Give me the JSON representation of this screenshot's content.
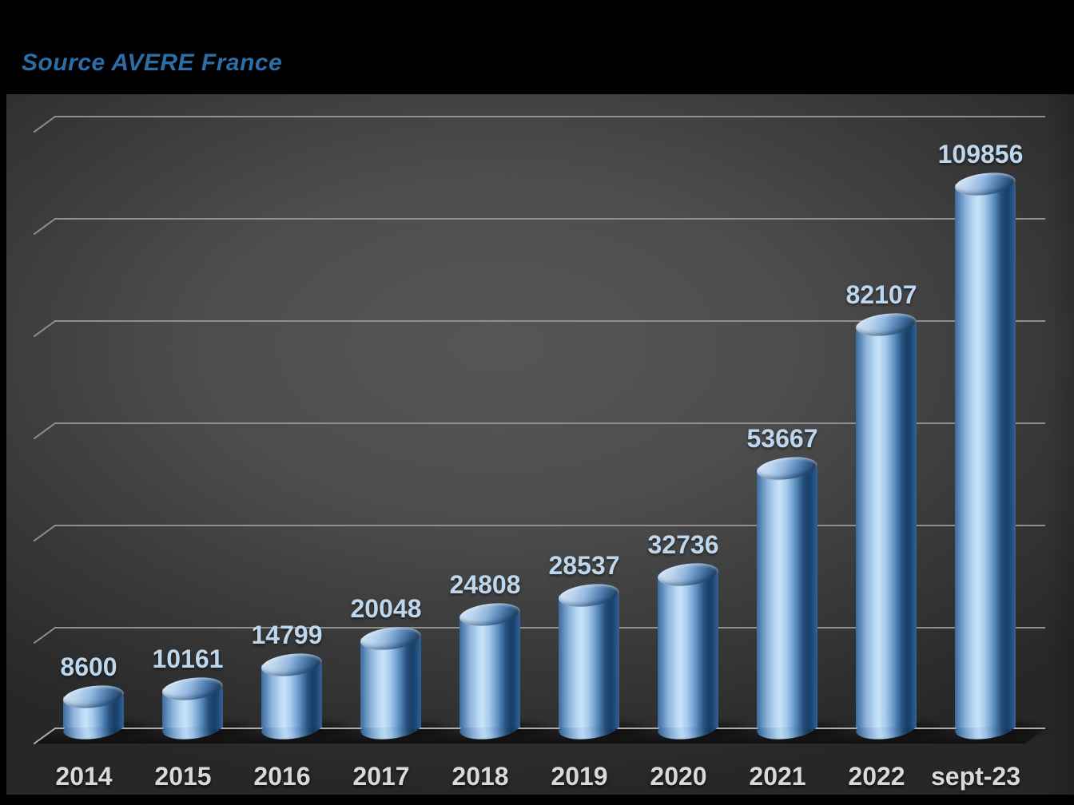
{
  "source_caption": "Source AVERE France",
  "chart_data": {
    "type": "bar",
    "subtype": "3d-cylinder",
    "title": "",
    "source": "Source AVERE France",
    "categories": [
      "2014",
      "2015",
      "2016",
      "2017",
      "2018",
      "2019",
      "2020",
      "2021",
      "2022",
      "sept-23"
    ],
    "values": [
      8600,
      10161,
      14799,
      20048,
      24808,
      28537,
      32736,
      53667,
      82107,
      109856
    ],
    "data_labels": [
      "8600",
      "10161",
      "14799",
      "20048",
      "24808",
      "28537",
      "32736",
      "53667",
      "82107",
      "109856"
    ],
    "xlabel": "",
    "ylabel": "",
    "ylim": [
      0,
      120000
    ],
    "gridline_interval": 20000,
    "gridlines": "horizontal",
    "legend": "none",
    "colors": {
      "bar_base": "#5b9bd5",
      "bar_highlight": "#c8e2f8",
      "bar_dark": "#1c4672",
      "data_label": "#bdd7ee",
      "category_label": "#d9d9d9",
      "gridline": "#8f8f8f",
      "axis_line": "#aeaeae",
      "source_text": "#2d6da6",
      "plot_bg_center": "#565656",
      "plot_bg_edge": "#272727",
      "page_bg": "#000000"
    }
  }
}
